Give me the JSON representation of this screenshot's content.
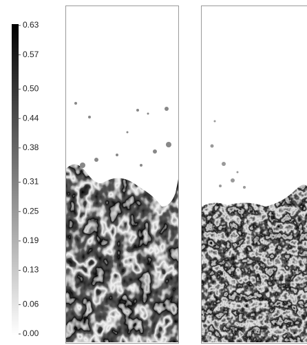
{
  "chart_data": {
    "type": "colorbar",
    "ylim": [
      0,
      0.63
    ],
    "yticks": [
      {
        "value": 0,
        "label": "0.00"
      },
      0.06,
      0.13,
      0.19,
      0.25,
      0.31,
      0.38,
      0.44,
      {
        "value": 0.5,
        "label": "0.50"
      },
      0.57,
      0.63
    ],
    "colors": [
      "#ffffff",
      "#000000"
    ]
  }
}
